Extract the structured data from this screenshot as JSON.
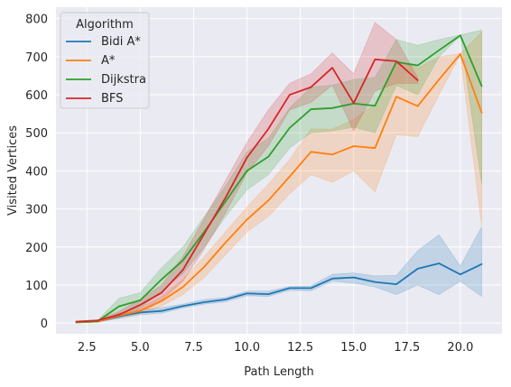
{
  "chart_data": {
    "type": "line",
    "title": "",
    "xlabel": "Path Length",
    "ylabel": "Visited Vertices",
    "xlim": [
      1.05,
      21.95
    ],
    "ylim": [
      -28,
      830
    ],
    "xticks": [
      2.5,
      5.0,
      7.5,
      10.0,
      12.5,
      15.0,
      17.5,
      20.0
    ],
    "xtick_labels": [
      "2.5",
      "5.0",
      "7.5",
      "10.0",
      "12.5",
      "15.0",
      "17.5",
      "20.0"
    ],
    "yticks": [
      0,
      100,
      200,
      300,
      400,
      500,
      600,
      700,
      800
    ],
    "ytick_labels": [
      "0",
      "100",
      "200",
      "300",
      "400",
      "500",
      "600",
      "700",
      "800"
    ],
    "grid": true,
    "legend": {
      "title": "Algorithm",
      "position": "top-left"
    },
    "series": [
      {
        "name": "Bidi A*",
        "color": "#1f77b4",
        "x": [
          2,
          3,
          4,
          5,
          6,
          7,
          8,
          9,
          10,
          11,
          12,
          13,
          14,
          15,
          16,
          17,
          18,
          19,
          20,
          21
        ],
        "y": [
          2,
          4,
          18,
          28,
          32,
          45,
          55,
          62,
          78,
          76,
          92,
          92,
          117,
          120,
          108,
          102,
          143,
          157,
          128,
          155
        ],
        "lower": [
          1,
          3,
          12,
          22,
          26,
          40,
          50,
          56,
          72,
          70,
          86,
          85,
          110,
          105,
          95,
          75,
          100,
          75,
          110,
          70
        ],
        "upper": [
          3,
          6,
          24,
          35,
          40,
          50,
          62,
          67,
          84,
          84,
          96,
          98,
          128,
          132,
          124,
          125,
          190,
          232,
          150,
          253
        ]
      },
      {
        "name": "A*",
        "color": "#ff7f0e",
        "x": [
          2,
          3,
          4,
          5,
          6,
          7,
          8,
          9,
          10,
          11,
          12,
          13,
          14,
          15,
          16,
          17,
          18,
          19,
          20,
          21
        ],
        "y": [
          2,
          4,
          20,
          32,
          58,
          95,
          148,
          212,
          272,
          322,
          385,
          450,
          443,
          465,
          460,
          595,
          570,
          640,
          707,
          553
        ],
        "lower": [
          1,
          3,
          14,
          24,
          45,
          75,
          120,
          180,
          240,
          280,
          340,
          390,
          370,
          400,
          345,
          495,
          490,
          600,
          705,
          255
        ],
        "upper": [
          3,
          6,
          26,
          40,
          70,
          115,
          175,
          240,
          305,
          365,
          430,
          510,
          510,
          535,
          575,
          690,
          670,
          700,
          708,
          765
        ]
      },
      {
        "name": "Dijkstra",
        "color": "#2ca02c",
        "x": [
          2,
          3,
          4,
          5,
          6,
          7,
          8,
          9,
          10,
          11,
          12,
          13,
          14,
          15,
          16,
          17,
          18,
          19,
          20,
          21
        ],
        "y": [
          3,
          5,
          44,
          60,
          115,
          165,
          240,
          320,
          400,
          437,
          513,
          562,
          565,
          577,
          571,
          686,
          677,
          717,
          756,
          623
        ],
        "lower": [
          2,
          3,
          25,
          40,
          85,
          130,
          200,
          280,
          350,
          390,
          460,
          500,
          505,
          515,
          500,
          625,
          600,
          700,
          755,
          365
        ],
        "upper": [
          4,
          7,
          65,
          80,
          145,
          200,
          280,
          360,
          450,
          485,
          565,
          620,
          625,
          640,
          645,
          745,
          730,
          745,
          757,
          770
        ]
      },
      {
        "name": "BFS",
        "color": "#d62728",
        "x": [
          2,
          3,
          4,
          5,
          6,
          7,
          8,
          9,
          10,
          11,
          12,
          13,
          14,
          15,
          16,
          17,
          18
        ],
        "y": [
          4,
          7,
          22,
          48,
          80,
          140,
          235,
          330,
          435,
          510,
          600,
          620,
          671,
          578,
          693,
          688,
          638
        ],
        "lower": [
          3,
          5,
          15,
          35,
          60,
          110,
          195,
          290,
          395,
          465,
          560,
          580,
          625,
          505,
          610,
          630,
          630
        ],
        "upper": [
          5,
          9,
          30,
          62,
          100,
          175,
          275,
          375,
          475,
          560,
          630,
          655,
          710,
          655,
          790,
          745,
          645
        ]
      }
    ]
  }
}
